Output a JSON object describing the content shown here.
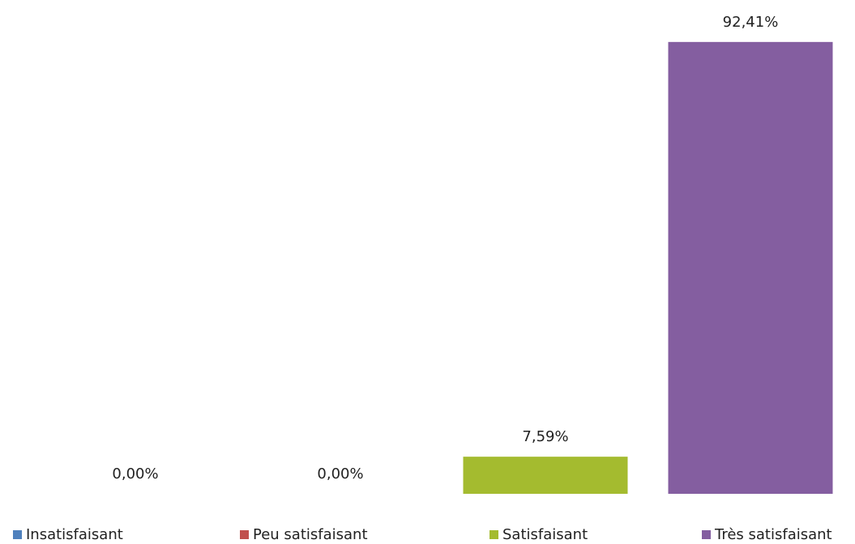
{
  "chart_data": {
    "type": "bar",
    "categories": [
      "Insatisfaisant",
      "Peu satisfaisant",
      "Satisfaisant",
      "Très satisfaisant"
    ],
    "values": [
      0,
      0,
      7.59,
      92.41
    ],
    "value_labels": [
      "0,00%",
      "0,00%",
      "7,59%",
      "92,41%"
    ],
    "colors": [
      "#4f81bd",
      "#c0504d",
      "#a4bb2f",
      "#845ea0"
    ],
    "legend": "bottom"
  }
}
